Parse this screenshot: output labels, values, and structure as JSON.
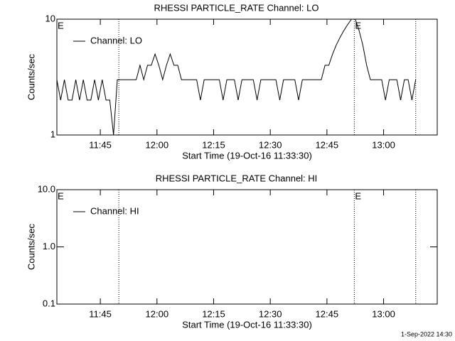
{
  "chart_data": [
    {
      "type": "line",
      "title": "RHESSI PARTICLE_RATE Channel: LO",
      "xlabel": "Start Time (19-Oct-16 11:33:30)",
      "ylabel": "Counts/sec",
      "log_y": true,
      "legend": "upper left",
      "xlim": [
        693.5,
        794.2
      ],
      "xticks": [
        {
          "value": 705,
          "label": "11:45"
        },
        {
          "value": 720,
          "label": "12:00"
        },
        {
          "value": 735,
          "label": "12:15"
        },
        {
          "value": 750,
          "label": "12:30"
        },
        {
          "value": 765,
          "label": "12:45"
        },
        {
          "value": 780,
          "label": "13:00"
        }
      ],
      "ylim": [
        1,
        10
      ],
      "yticks": [
        1,
        10
      ],
      "vlines": [
        709.9,
        772.25,
        788.5
      ],
      "annotations": [
        {
          "x": 693.5,
          "label": "E"
        },
        {
          "x": 772.25,
          "label": "E"
        }
      ],
      "x": [
        693.5,
        694.5,
        695.5,
        696.5,
        697.5,
        698.5,
        699.5,
        700.5,
        701.5,
        702.5,
        703.5,
        704.5,
        705.5,
        706.5,
        707.5,
        708.5,
        709.5,
        710.5,
        711.5,
        712.5,
        713.5,
        714.5,
        715.5,
        716.5,
        717.5,
        718.5,
        719.5,
        720.5,
        721.5,
        722.5,
        723.5,
        724.5,
        725.5,
        726.5,
        727.5,
        728.5,
        729.5,
        730.5,
        731.5,
        732.5,
        733.5,
        734.5,
        735.5,
        736.5,
        737.5,
        738.5,
        739.5,
        740.5,
        741.5,
        742.5,
        743.5,
        744.5,
        745.5,
        746.5,
        747.5,
        748.5,
        749.5,
        750.5,
        751.5,
        752.5,
        753.5,
        754.5,
        755.5,
        756.5,
        757.5,
        758.5,
        759.5,
        760.5,
        761.5,
        762.5,
        763.5,
        764.5,
        765.5,
        766.5,
        767.5,
        768.5,
        769.5,
        770.5,
        771.5,
        772.5,
        773.5,
        774.5,
        775.5,
        776.5,
        777.5,
        778.5,
        779.5,
        780.5,
        781.5,
        782.5,
        783.5,
        784.5,
        785.5,
        786.5,
        787.5,
        788.5
      ],
      "series": [
        {
          "name": "Channel: LO",
          "color": "#000000",
          "values": [
            3,
            2,
            3,
            2,
            2,
            3,
            2,
            3,
            2,
            2,
            3,
            2,
            3,
            2,
            2,
            1,
            3,
            3,
            3,
            3,
            3,
            3,
            4,
            3,
            4,
            4,
            5,
            4,
            3,
            4,
            5,
            4,
            4,
            3,
            3,
            3,
            3,
            3,
            2,
            3,
            3,
            3,
            3,
            3,
            2,
            3,
            3,
            3,
            2,
            3,
            3,
            3,
            3,
            2,
            3,
            3,
            3,
            3,
            3,
            2,
            3,
            3,
            3,
            3,
            2,
            3,
            3,
            3,
            3,
            3,
            3,
            4,
            4,
            5,
            6,
            7,
            8,
            9,
            10,
            10,
            8,
            6,
            4,
            3,
            3,
            3,
            3,
            2,
            3,
            3,
            3,
            2,
            3,
            3,
            2,
            3
          ]
        }
      ]
    },
    {
      "type": "line",
      "title": "RHESSI PARTICLE_RATE Channel: HI",
      "xlabel": "Start Time (19-Oct-16 11:33:30)",
      "ylabel": "Counts/sec",
      "log_y": true,
      "legend": "upper left",
      "xlim": [
        693.5,
        794.2
      ],
      "xticks": [
        {
          "value": 705,
          "label": "11:45"
        },
        {
          "value": 720,
          "label": "12:00"
        },
        {
          "value": 735,
          "label": "12:15"
        },
        {
          "value": 750,
          "label": "12:30"
        },
        {
          "value": 765,
          "label": "12:45"
        },
        {
          "value": 780,
          "label": "13:00"
        }
      ],
      "ylim": [
        0.1,
        10
      ],
      "yticks": [
        0.1,
        {
          "value": 1,
          "label": "1.0"
        },
        {
          "value": 10,
          "label": "10.0"
        }
      ],
      "vlines": [
        709.9,
        772.25,
        788.5
      ],
      "annotations": [
        {
          "x": 693.5,
          "label": "E"
        },
        {
          "x": 772.25,
          "label": "E"
        }
      ],
      "x": [],
      "series": [
        {
          "name": "Channel: HI",
          "color": "#000000",
          "values": []
        }
      ]
    }
  ],
  "footer": "1-Sep-2022 14:30"
}
